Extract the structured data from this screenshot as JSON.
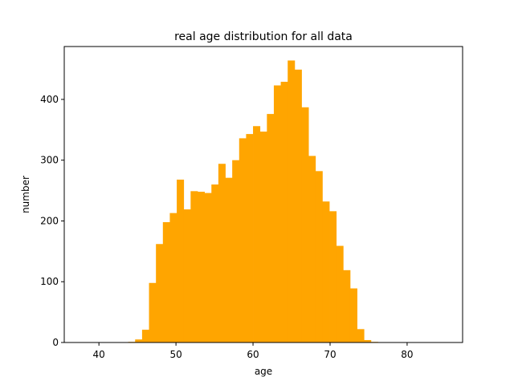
{
  "chart_data": {
    "type": "bar",
    "title": "real age distribution for all data",
    "xlabel": "age",
    "ylabel": "number",
    "xlim": [
      35.5,
      87.2
    ],
    "ylim": [
      0,
      487
    ],
    "xticks": [
      40,
      50,
      60,
      70,
      80
    ],
    "yticks": [
      0,
      100,
      200,
      300,
      400
    ],
    "grid": false,
    "bar_color": "#ffa500",
    "bin_width": 0.9,
    "bins": [
      {
        "x": 43.8,
        "y": 1
      },
      {
        "x": 44.7,
        "y": 5
      },
      {
        "x": 45.6,
        "y": 21
      },
      {
        "x": 46.5,
        "y": 98
      },
      {
        "x": 47.4,
        "y": 162
      },
      {
        "x": 48.3,
        "y": 198
      },
      {
        "x": 49.2,
        "y": 213
      },
      {
        "x": 50.1,
        "y": 268
      },
      {
        "x": 51.0,
        "y": 219
      },
      {
        "x": 51.9,
        "y": 249
      },
      {
        "x": 52.8,
        "y": 248
      },
      {
        "x": 53.7,
        "y": 246
      },
      {
        "x": 54.6,
        "y": 260
      },
      {
        "x": 55.5,
        "y": 294
      },
      {
        "x": 56.4,
        "y": 271
      },
      {
        "x": 57.3,
        "y": 300
      },
      {
        "x": 58.2,
        "y": 336
      },
      {
        "x": 59.1,
        "y": 343
      },
      {
        "x": 60.0,
        "y": 356
      },
      {
        "x": 60.9,
        "y": 347
      },
      {
        "x": 61.8,
        "y": 376
      },
      {
        "x": 62.7,
        "y": 423
      },
      {
        "x": 63.6,
        "y": 429
      },
      {
        "x": 64.5,
        "y": 464
      },
      {
        "x": 65.4,
        "y": 449
      },
      {
        "x": 66.3,
        "y": 387
      },
      {
        "x": 67.2,
        "y": 307
      },
      {
        "x": 68.1,
        "y": 282
      },
      {
        "x": 69.0,
        "y": 232
      },
      {
        "x": 69.9,
        "y": 216
      },
      {
        "x": 70.8,
        "y": 159
      },
      {
        "x": 71.7,
        "y": 119
      },
      {
        "x": 72.6,
        "y": 89
      },
      {
        "x": 73.5,
        "y": 22
      },
      {
        "x": 74.4,
        "y": 4
      },
      {
        "x": 75.3,
        "y": 1
      }
    ]
  }
}
